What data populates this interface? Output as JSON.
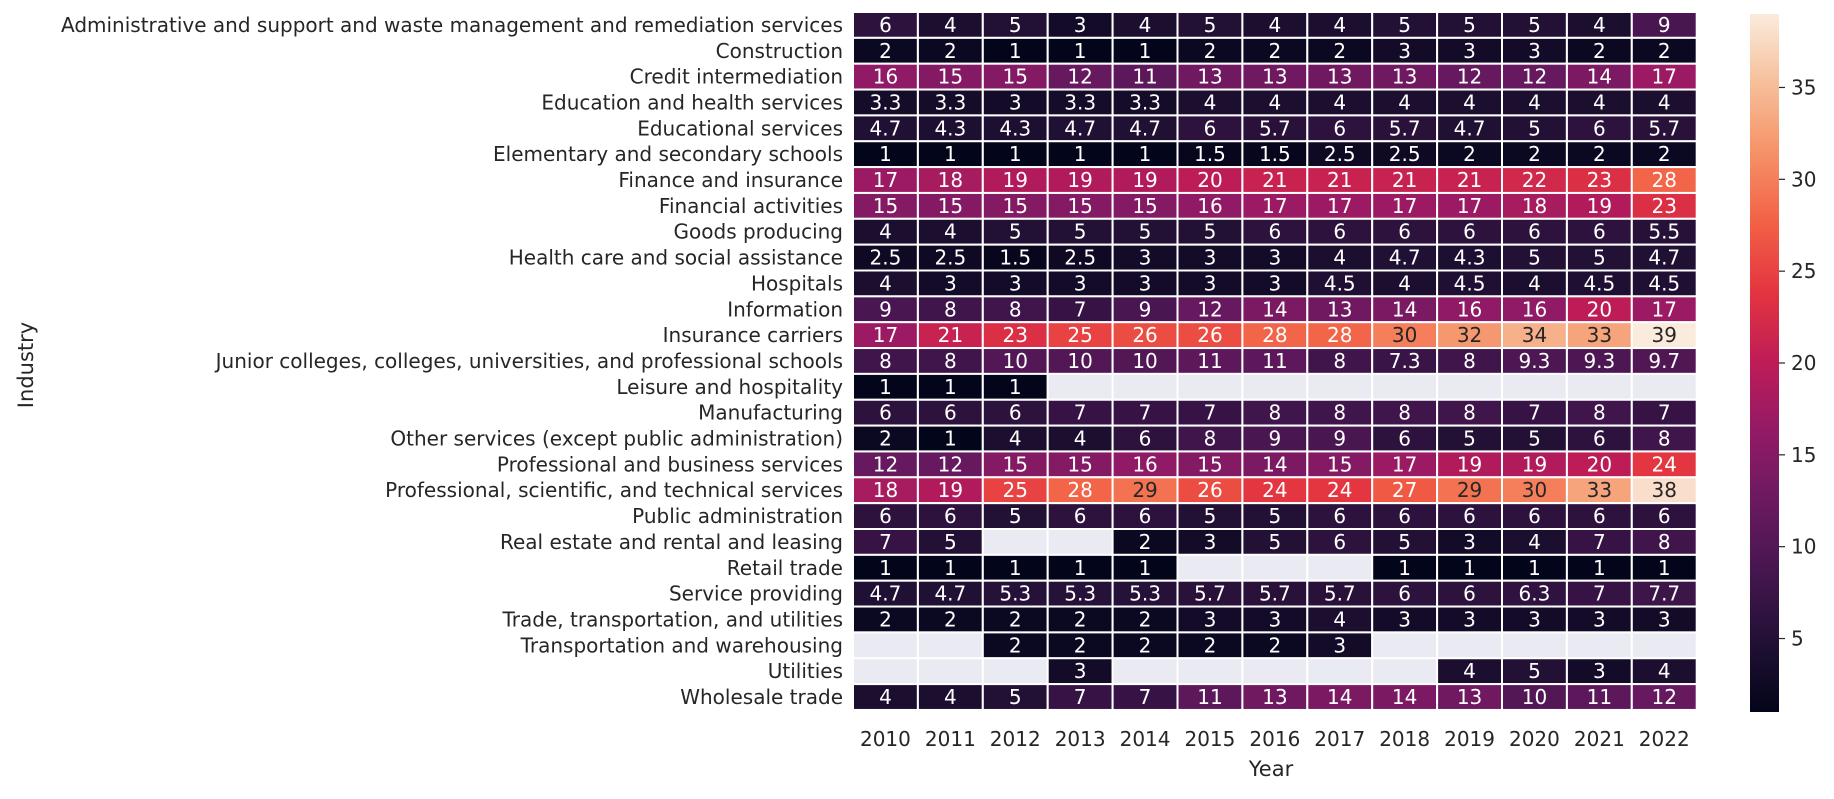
{
  "chart_data": {
    "type": "heatmap",
    "title": "",
    "xlabel": "Year",
    "ylabel": "Industry",
    "x": [
      "2010",
      "2011",
      "2012",
      "2013",
      "2014",
      "2015",
      "2016",
      "2017",
      "2018",
      "2019",
      "2020",
      "2021",
      "2022"
    ],
    "y": [
      "Administrative and support and waste management and remediation services",
      "Construction",
      "Credit intermediation",
      "Education and health services",
      "Educational services",
      "Elementary and secondary schools",
      "Finance and insurance",
      "Financial activities",
      "Goods producing",
      "Health care and social assistance",
      "Hospitals",
      "Information",
      "Insurance carriers",
      "Junior colleges, colleges, universities, and professional schools",
      "Leisure and hospitality",
      "Manufacturing",
      "Other services (except public administration)",
      "Professional and business services",
      "Professional, scientific, and technical services",
      "Public administration",
      "Real estate and rental and leasing",
      "Retail trade",
      "Service providing",
      "Trade, transportation, and utilities",
      "Transportation and warehousing",
      "Utilities",
      "Wholesale trade"
    ],
    "values": [
      [
        6,
        4,
        5,
        3,
        4,
        5,
        4,
        4,
        5,
        5,
        5,
        4,
        9
      ],
      [
        2,
        2,
        1,
        1,
        1,
        2,
        2,
        2,
        3,
        3,
        3,
        2,
        2
      ],
      [
        16,
        15,
        15,
        12,
        11,
        13,
        13,
        13,
        13,
        12,
        12,
        14,
        17
      ],
      [
        3.3,
        3.3,
        3,
        3.3,
        3.3,
        4,
        4,
        4,
        4,
        4,
        4,
        4,
        4
      ],
      [
        4.7,
        4.3,
        4.3,
        4.7,
        4.7,
        6,
        5.7,
        6,
        5.7,
        4.7,
        5,
        6,
        5.7
      ],
      [
        1,
        1,
        1,
        1,
        1,
        1.5,
        1.5,
        2.5,
        2.5,
        2,
        2,
        2,
        2
      ],
      [
        17,
        18,
        19,
        19,
        19,
        20,
        21,
        21,
        21,
        21,
        22,
        23,
        28
      ],
      [
        15,
        15,
        15,
        15,
        15,
        16,
        17,
        17,
        17,
        17,
        18,
        19,
        23
      ],
      [
        4,
        4,
        5,
        5,
        5,
        5,
        6,
        6,
        6,
        6,
        6,
        6,
        5.5
      ],
      [
        2.5,
        2.5,
        1.5,
        2.5,
        3,
        3,
        3,
        4,
        4.7,
        4.3,
        5,
        5,
        4.7
      ],
      [
        4,
        3,
        3,
        3,
        3,
        3,
        3,
        4.5,
        4,
        4.5,
        4,
        4.5,
        4.5
      ],
      [
        9,
        8,
        8,
        7,
        9,
        12,
        14,
        13,
        14,
        16,
        16,
        20,
        17
      ],
      [
        17,
        21,
        23,
        25,
        26,
        26,
        28,
        28,
        30,
        32,
        34,
        33,
        39
      ],
      [
        8,
        8,
        10,
        10,
        10,
        11,
        11,
        8,
        7.3,
        8,
        9.3,
        9.3,
        9.7
      ],
      [
        1,
        1,
        1,
        null,
        null,
        null,
        null,
        null,
        null,
        null,
        null,
        null,
        null
      ],
      [
        6,
        6,
        6,
        7,
        7,
        7,
        8,
        8,
        8,
        8,
        7,
        8,
        7
      ],
      [
        2,
        1,
        4,
        4,
        6,
        8,
        9,
        9,
        6,
        5,
        5,
        6,
        8
      ],
      [
        12,
        12,
        15,
        15,
        16,
        15,
        14,
        15,
        17,
        19,
        19,
        20,
        24
      ],
      [
        18,
        19,
        25,
        28,
        29,
        26,
        24,
        24,
        27,
        29,
        30,
        33,
        38
      ],
      [
        6,
        6,
        5,
        6,
        6,
        5,
        5,
        6,
        6,
        6,
        6,
        6,
        6
      ],
      [
        7,
        5,
        null,
        null,
        2,
        3,
        5,
        6,
        5,
        3,
        4,
        7,
        8
      ],
      [
        1,
        1,
        1,
        1,
        1,
        null,
        null,
        null,
        1,
        1,
        1,
        1,
        1
      ],
      [
        4.7,
        4.7,
        5.3,
        5.3,
        5.3,
        5.7,
        5.7,
        5.7,
        6,
        6,
        6.3,
        7,
        7.7
      ],
      [
        2,
        2,
        2,
        2,
        2,
        3,
        3,
        4,
        3,
        3,
        3,
        3,
        3
      ],
      [
        null,
        null,
        2,
        2,
        2,
        2,
        2,
        3,
        null,
        null,
        null,
        null,
        null
      ],
      [
        null,
        null,
        null,
        3,
        null,
        null,
        null,
        null,
        null,
        4,
        5,
        3,
        4
      ],
      [
        4,
        4,
        5,
        7,
        7,
        11,
        13,
        14,
        14,
        13,
        10,
        11,
        12
      ]
    ],
    "value_range": [
      1,
      39
    ],
    "colorbar": {
      "ticks": [
        5,
        10,
        15,
        20,
        25,
        30,
        35
      ],
      "colormap": "rocket",
      "placement": "right"
    },
    "missing_color": "#eaeaf2",
    "annotated": true
  }
}
